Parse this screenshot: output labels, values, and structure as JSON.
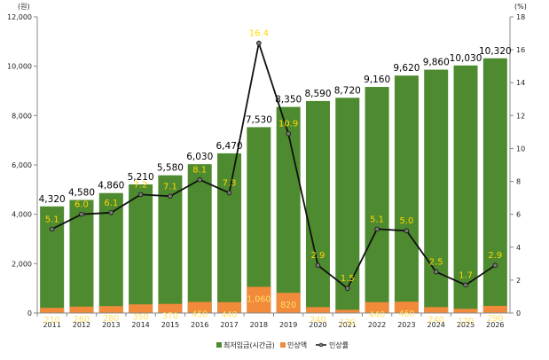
{
  "chart_data": {
    "type": "bar",
    "categories": [
      "2011",
      "2012",
      "2013",
      "2014",
      "2015",
      "2016",
      "2017",
      "2018",
      "2019",
      "2020",
      "2021",
      "2022",
      "2023",
      "2024",
      "2025",
      "2026"
    ],
    "series": [
      {
        "name": "최저임금(시간급)",
        "kind": "bar",
        "axis": "left",
        "color": "#4e8a2f",
        "values": [
          4320,
          4580,
          4860,
          5210,
          5580,
          6030,
          6470,
          7530,
          8350,
          8590,
          8720,
          9160,
          9620,
          9860,
          10030,
          10320
        ]
      },
      {
        "name": "인상액",
        "kind": "bar",
        "axis": "left",
        "color": "#f18a3a",
        "values": [
          210,
          260,
          280,
          350,
          370,
          450,
          440,
          1060,
          820,
          240,
          130,
          440,
          460,
          240,
          170,
          290
        ]
      },
      {
        "name": "인상률",
        "kind": "line",
        "axis": "right",
        "color": "#111111",
        "values": [
          5.1,
          6.0,
          6.1,
          7.2,
          7.1,
          8.1,
          7.3,
          16.4,
          10.9,
          2.9,
          1.5,
          5.1,
          5.0,
          2.5,
          1.7,
          2.9
        ]
      }
    ],
    "total_labels": [
      "4,320",
      "4,580",
      "4,860",
      "5,210",
      "5,580",
      "6,030",
      "6,470",
      "7,530",
      "8,350",
      "8,590",
      "8,720",
      "9,160",
      "9,620",
      "9,860",
      "10,030",
      "10,320"
    ],
    "increase_labels": [
      "210",
      "260",
      "280",
      "350",
      "370",
      "450",
      "440",
      "1,060",
      "820",
      "240",
      "130",
      "440",
      "460",
      "240",
      "170",
      "290"
    ],
    "rate_labels": [
      "5.1",
      "6.0",
      "6.1",
      "7.2",
      "7.1",
      "8.1",
      "7.3",
      "16.4",
      "10.9",
      "2.9",
      "1.5",
      "5.1",
      "5.0",
      "2.5",
      "1.7",
      "2.9"
    ],
    "left_axis": {
      "unit": "(원)",
      "ylim": [
        0,
        12000
      ],
      "ticks": [
        "0",
        "2,000",
        "4,000",
        "6,000",
        "8,000",
        "10,000",
        "12,000"
      ],
      "tick_values": [
        0,
        2000,
        4000,
        6000,
        8000,
        10000,
        12000
      ]
    },
    "right_axis": {
      "unit": "(%)",
      "ylim": [
        0,
        18
      ],
      "ticks": [
        "0",
        "2",
        "4",
        "6",
        "8",
        "10",
        "12",
        "14",
        "16",
        "18"
      ],
      "tick_values": [
        0,
        2,
        4,
        6,
        8,
        10,
        12,
        14,
        16,
        18
      ]
    },
    "label_colors": {
      "total": "#000000",
      "increase": "#ffe066",
      "rate": "#ffd700"
    },
    "grid": false,
    "legend_position": "bottom"
  }
}
